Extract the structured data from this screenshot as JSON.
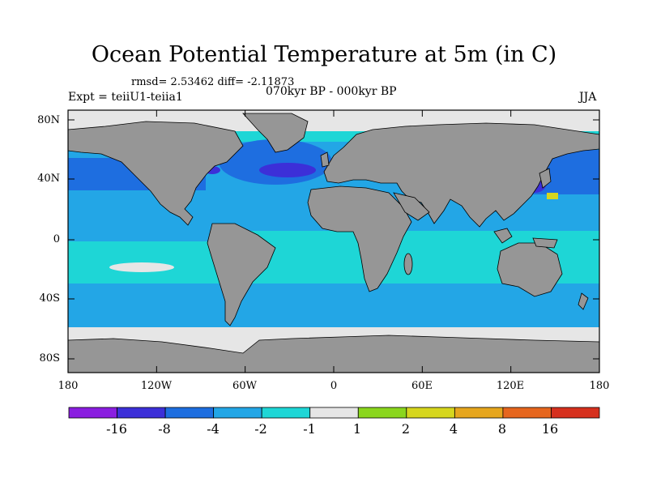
{
  "title": "Ocean Potential Temperature at 5m (in C)",
  "stats": "rmsd= 2.53462 diff= -2.11873",
  "experiment": "Expt = teiiU1-teiia1",
  "period": "070kyr BP - 000kyr BP",
  "season": "JJA",
  "lat_labels": [
    "80N",
    "40N",
    "0",
    "40S",
    "80S"
  ],
  "lon_labels": [
    "180",
    "120W",
    "60W",
    "0",
    "60E",
    "120E",
    "180"
  ],
  "colorbar": {
    "labels": [
      "-16",
      "-8",
      "-4",
      "-2",
      "-1",
      "1",
      "2",
      "4",
      "8",
      "16"
    ],
    "colors": [
      "#8a1ee0",
      "#3c2fd8",
      "#1e6ee0",
      "#23a6e6",
      "#1ed6d6",
      "#e6e6e6",
      "#8ad61e",
      "#d6d61e",
      "#e6a61e",
      "#e6661e",
      "#d6301e"
    ]
  },
  "map_colors": {
    "land": "#969696",
    "sea_ice": "#e6e6e6",
    "ocean_base": "#1ed6d6",
    "cool_moderate": "#23a6e6",
    "cool_strong": "#1e6ee0",
    "cool_extreme": "#3c2fd8",
    "warm": "#d6d61e"
  }
}
